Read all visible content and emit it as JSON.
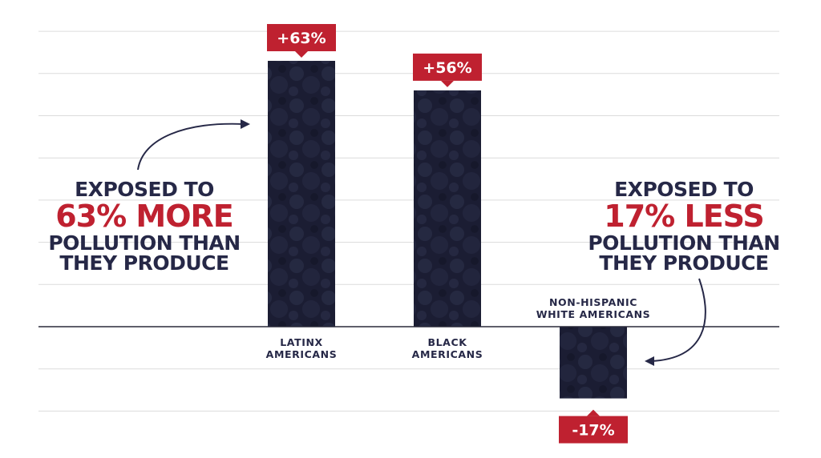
{
  "chart_data": {
    "type": "bar",
    "categories": [
      "LATINX\nAMERICANS",
      "BLACK\nAMERICANS",
      "NON-HISPANIC\nWHITE AMERICANS"
    ],
    "values": [
      63,
      56,
      -17
    ],
    "data_labels": [
      "+63%",
      "+56%",
      "-17%"
    ],
    "title": "",
    "xlabel": "",
    "ylabel": "",
    "ylim": [
      -21,
      70
    ],
    "grid": true,
    "bar_color": "#1e2036",
    "label_color": "#bf2130",
    "annotations": [
      {
        "line1": "EXPOSED TO",
        "line2": "63% MORE",
        "line3": "POLLUTION THAN",
        "line4": "THEY PRODUCE"
      },
      {
        "line1": "EXPOSED TO",
        "line2": "17% LESS",
        "line3": "POLLUTION THAN",
        "line4": "THEY PRODUCE"
      }
    ]
  },
  "colors": {
    "accent_red": "#bf2130",
    "text_navy": "#262847",
    "grid": "#dcdcdc",
    "axis": "#2a2a3a"
  }
}
